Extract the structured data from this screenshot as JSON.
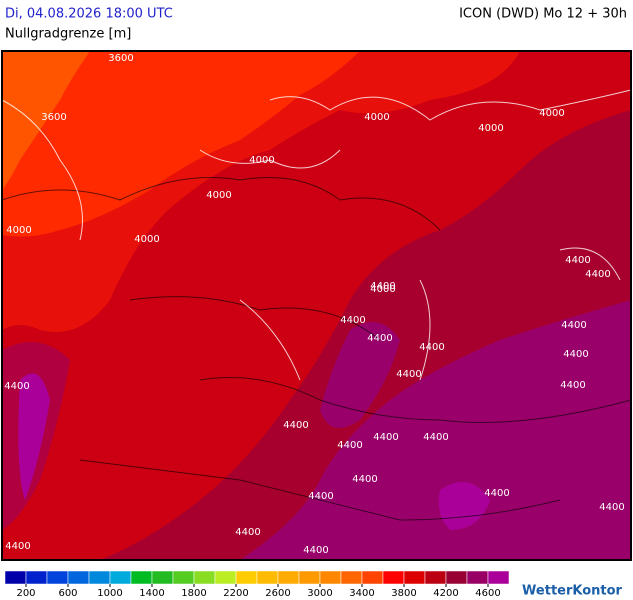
{
  "header": {
    "datetime": "Di, 04.08.2026 18:00 UTC",
    "model": "ICON (DWD) Mo 12 + 30h",
    "parameter": "Nullgradgrenze [m]"
  },
  "contour_labels": [
    3600,
    3600,
    4000,
    4000,
    4000,
    4000,
    4000,
    4000,
    4000,
    4000,
    4400,
    4400,
    4400,
    4400,
    4400,
    4400,
    4400,
    4400,
    4400,
    4400,
    4400,
    4400,
    4400,
    4400,
    4400,
    4400,
    4400,
    4400,
    4400,
    4400,
    4400,
    4400
  ],
  "legend": {
    "colors": [
      "#0000aa",
      "#0022cc",
      "#0044dd",
      "#0066dd",
      "#0088dd",
      "#00aadd",
      "#00bb22",
      "#22bb22",
      "#55cc22",
      "#88dd22",
      "#bbee22",
      "#ffcc00",
      "#ffbb00",
      "#ffaa00",
      "#ff9900",
      "#ff8800",
      "#ff6600",
      "#ff4400",
      "#ff0000",
      "#dd0000",
      "#bb0011",
      "#990033",
      "#990066",
      "#aa0099"
    ],
    "ticks": [
      200,
      600,
      1000,
      1400,
      1800,
      2200,
      2600,
      3000,
      3400,
      3800,
      4200,
      4600
    ]
  },
  "brand": "WetterKontor"
}
